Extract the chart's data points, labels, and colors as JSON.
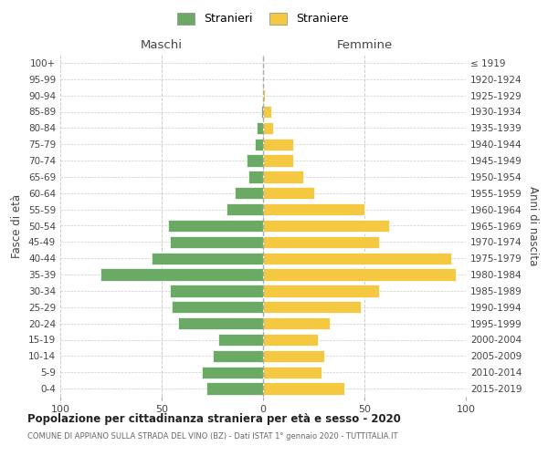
{
  "age_groups": [
    "0-4",
    "5-9",
    "10-14",
    "15-19",
    "20-24",
    "25-29",
    "30-34",
    "35-39",
    "40-44",
    "45-49",
    "50-54",
    "55-59",
    "60-64",
    "65-69",
    "70-74",
    "75-79",
    "80-84",
    "85-89",
    "90-94",
    "95-99",
    "100+"
  ],
  "birth_years": [
    "2015-2019",
    "2010-2014",
    "2005-2009",
    "2000-2004",
    "1995-1999",
    "1990-1994",
    "1985-1989",
    "1980-1984",
    "1975-1979",
    "1970-1974",
    "1965-1969",
    "1960-1964",
    "1955-1959",
    "1950-1954",
    "1945-1949",
    "1940-1944",
    "1935-1939",
    "1930-1934",
    "1925-1929",
    "1920-1924",
    "≤ 1919"
  ],
  "maschi": [
    28,
    30,
    25,
    22,
    42,
    45,
    46,
    80,
    55,
    46,
    47,
    18,
    14,
    7,
    8,
    4,
    3,
    1,
    0,
    0,
    0
  ],
  "femmine": [
    40,
    29,
    30,
    27,
    33,
    48,
    57,
    95,
    93,
    57,
    62,
    50,
    25,
    20,
    15,
    15,
    5,
    4,
    1,
    0,
    0
  ],
  "color_maschi": "#6aaa64",
  "color_femmine": "#f5c842",
  "title": "Popolazione per cittadinanza straniera per età e sesso - 2020",
  "subtitle": "COMUNE DI APPIANO SULLA STRADA DEL VINO (BZ) - Dati ISTAT 1° gennaio 2020 - TUTTITALIA.IT",
  "ylabel_left": "Fasce di età",
  "ylabel_right": "Anni di nascita",
  "xlim": [
    -100,
    100
  ],
  "legend_stranieri": "Stranieri",
  "legend_straniere": "Straniere",
  "header_maschi": "Maschi",
  "header_femmine": "Femmine",
  "background_color": "#ffffff",
  "grid_color": "#cccccc"
}
